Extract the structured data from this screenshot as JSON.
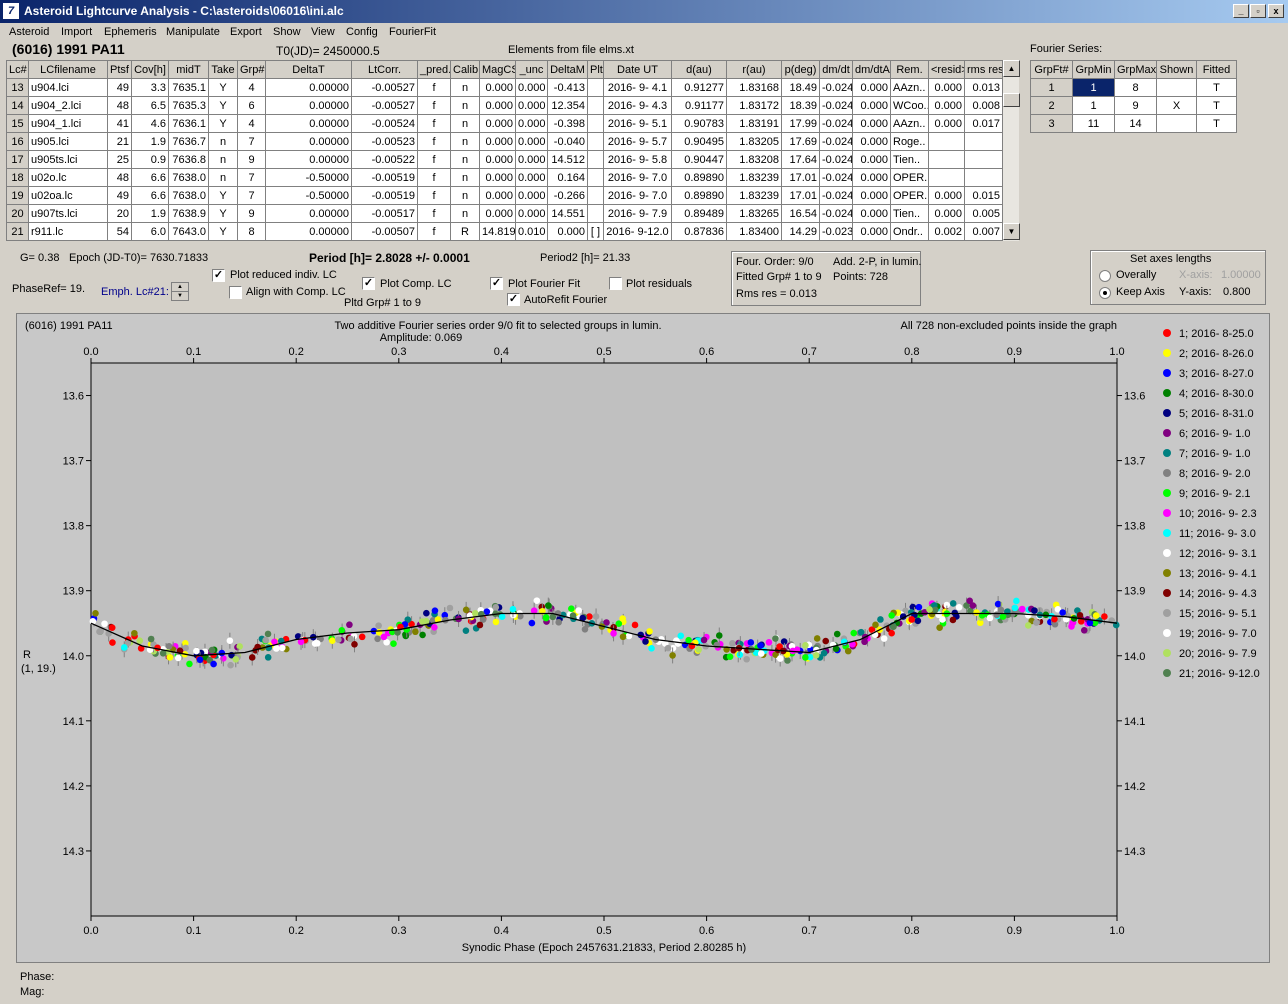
{
  "window": {
    "title": "Asteroid Lightcurve Analysis - C:\\asteroids\\06016\\ini.alc",
    "min": "_",
    "restore": "▫",
    "close": "x",
    "icon": "7"
  },
  "menu": [
    "Asteroid",
    "Import",
    "Ephemeris",
    "Manipulate",
    "Export",
    "Show",
    "View",
    "Config",
    "FourierFit"
  ],
  "header": {
    "asteroid": "(6016) 1991 PA11",
    "t0": "T0(JD)= 2450000.5",
    "elements": "Elements from file elms.xt"
  },
  "lc_table": {
    "columns": [
      "Lc#",
      "LCfilename",
      "Ptsf",
      "Cov[h]",
      "midT",
      "Take",
      "Grp#",
      "DeltaT",
      "LtCorr.",
      "_pred.",
      "Calib.",
      "MagCS",
      "_unc",
      "DeltaM",
      "Plt",
      "Date UT",
      "d(au)",
      "r(au)",
      "p(deg)",
      "dm/dt",
      "dm/dtA",
      "Rem.",
      "<resid>",
      "rms res"
    ],
    "rows": [
      [
        "13",
        "u904.lci",
        "49",
        "3.3",
        "7635.1",
        "Y",
        "4",
        "0.00000",
        "-0.00527",
        "f",
        "n",
        "0.000",
        "0.000",
        "-0.413",
        "",
        "2016- 9- 4.1",
        "0.91277",
        "1.83168",
        "18.49",
        "-0.024",
        "0.000",
        "AAzn..",
        "0.000",
        "0.013"
      ],
      [
        "14",
        "u904_2.lci",
        "48",
        "6.5",
        "7635.3",
        "Y",
        "6",
        "0.00000",
        "-0.00527",
        "f",
        "n",
        "0.000",
        "0.000",
        "12.354",
        "",
        "2016- 9- 4.3",
        "0.91177",
        "1.83172",
        "18.39",
        "-0.024",
        "0.000",
        "WCoo..",
        "0.000",
        "0.008"
      ],
      [
        "15",
        "u904_1.lci",
        "41",
        "4.6",
        "7636.1",
        "Y",
        "4",
        "0.00000",
        "-0.00524",
        "f",
        "n",
        "0.000",
        "0.000",
        "-0.398",
        "",
        "2016- 9- 5.1",
        "0.90783",
        "1.83191",
        "17.99",
        "-0.024",
        "0.000",
        "AAzn..",
        "0.000",
        "0.017"
      ],
      [
        "16",
        "u905.lci",
        "21",
        "1.9",
        "7636.7",
        "n",
        "7",
        "0.00000",
        "-0.00523",
        "f",
        "n",
        "0.000",
        "0.000",
        "-0.040",
        "",
        "2016- 9- 5.7",
        "0.90495",
        "1.83205",
        "17.69",
        "-0.024",
        "0.000",
        "Roge..",
        "",
        ""
      ],
      [
        "17",
        "u905ts.lci",
        "25",
        "0.9",
        "7636.8",
        "n",
        "9",
        "0.00000",
        "-0.00522",
        "f",
        "n",
        "0.000",
        "0.000",
        "14.512",
        "",
        "2016- 9- 5.8",
        "0.90447",
        "1.83208",
        "17.64",
        "-0.024",
        "0.000",
        "Tien..",
        "",
        ""
      ],
      [
        "18",
        "u02o.lc",
        "48",
        "6.6",
        "7638.0",
        "n",
        "7",
        "-0.50000",
        "-0.00519",
        "f",
        "n",
        "0.000",
        "0.000",
        "0.164",
        "",
        "2016- 9- 7.0",
        "0.89890",
        "1.83239",
        "17.01",
        "-0.024",
        "0.000",
        "OPER.",
        "",
        ""
      ],
      [
        "19",
        "u02oa.lc",
        "49",
        "6.6",
        "7638.0",
        "Y",
        "7",
        "-0.50000",
        "-0.00519",
        "f",
        "n",
        "0.000",
        "0.000",
        "-0.266",
        "",
        "2016- 9- 7.0",
        "0.89890",
        "1.83239",
        "17.01",
        "-0.024",
        "0.000",
        "OPER.",
        "0.000",
        "0.015"
      ],
      [
        "20",
        "u907ts.lci",
        "20",
        "1.9",
        "7638.9",
        "Y",
        "9",
        "0.00000",
        "-0.00517",
        "f",
        "n",
        "0.000",
        "0.000",
        "14.551",
        "",
        "2016- 9- 7.9",
        "0.89489",
        "1.83265",
        "16.54",
        "-0.024",
        "0.000",
        "Tien..",
        "0.000",
        "0.005"
      ],
      [
        "21",
        "r911.lc",
        "54",
        "6.0",
        "7643.0",
        "Y",
        "8",
        "0.00000",
        "-0.00507",
        "f",
        "R",
        "14.819",
        "0.010",
        "0.000",
        "[ ]",
        "2016- 9-12.0",
        "0.87836",
        "1.83400",
        "14.29",
        "-0.023",
        "0.000",
        "Ondr..",
        "0.002",
        "0.007"
      ]
    ]
  },
  "fourier_table": {
    "title": "Fourier Series:",
    "columns": [
      "GrpFt#",
      "GrpMin",
      "GrpMax",
      "Shown",
      "Fitted"
    ],
    "rows": [
      [
        "1",
        "1",
        "8",
        "",
        "T"
      ],
      [
        "2",
        "1",
        "9",
        "X",
        "T"
      ],
      [
        "3",
        "11",
        "14",
        "",
        "T"
      ]
    ]
  },
  "controls": {
    "g": "G= 0.38",
    "epoch": "Epoch (JD-T0)= 7630.71833",
    "period": "Period [h]= 2.8028 +/- 0.0001",
    "period2": "Period2 [h]= 21.33",
    "phaseref": "PhaseRef= 19.",
    "emph": "Emph. Lc#21:",
    "plot_reduced": "Plot reduced indiv. LC",
    "align": "Align with Comp. LC",
    "plot_comp": "Plot Comp. LC",
    "pltd_grp": "Pltd Grp#  1   to    9",
    "plot_fourier": "Plot Fourier Fit",
    "autorefit": "AutoRefit Fourier",
    "plot_resid": "Plot residuals",
    "info": {
      "four_order": "Four. Order:  9/0",
      "add": "Add. 2-P, in lumin.",
      "fitted": "Fitted Grp# 1 to 9",
      "points": "Points: 728",
      "rms": "Rms res     = 0.013"
    },
    "axes": {
      "title": "Set axes lengths",
      "overall": "Overally",
      "keep": "Keep Axis",
      "xaxis": "X-axis:",
      "xval": "1.00000",
      "yaxis": "Y-axis:",
      "yval": "0.800"
    }
  },
  "chart_data": {
    "type": "scatter",
    "title": "Two additive Fourier series order 9/0 fit to selected groups in lumin.",
    "subtitle": "Amplitude: 0.069",
    "top_left": "(6016) 1991 PA11",
    "top_right": "All 728 non-excluded points inside the graph",
    "xlabel": "Synodic Phase (Epoch 2457631.21833, Period 2.80285 h)",
    "ylabel": "R",
    "ylabel2": "(1, 19.)",
    "xlim": [
      0.0,
      1.0
    ],
    "ylim": [
      13.55,
      14.4
    ],
    "y_inverted": true,
    "xticks": [
      "0.0",
      "0.1",
      "0.2",
      "0.3",
      "0.4",
      "0.5",
      "0.6",
      "0.7",
      "0.8",
      "0.9",
      "1.0"
    ],
    "yticks": [
      "13.6",
      "13.7",
      "13.8",
      "13.9",
      "14.0",
      "14.1",
      "14.2",
      "14.3"
    ],
    "fit_curve": {
      "x": [
        0.0,
        0.05,
        0.1,
        0.15,
        0.2,
        0.25,
        0.3,
        0.35,
        0.4,
        0.45,
        0.5,
        0.55,
        0.6,
        0.65,
        0.7,
        0.75,
        0.8,
        0.85,
        0.9,
        0.95,
        1.0
      ],
      "y": [
        13.95,
        13.985,
        14.0,
        13.995,
        13.975,
        13.965,
        13.96,
        13.945,
        13.935,
        13.935,
        13.955,
        13.975,
        13.985,
        13.99,
        13.995,
        13.975,
        13.935,
        13.935,
        13.935,
        13.94,
        13.95
      ]
    },
    "legend": [
      {
        "label": "1; 2016- 8-25.0",
        "color": "#ff0000"
      },
      {
        "label": "2; 2016- 8-26.0",
        "color": "#ffff00"
      },
      {
        "label": "3; 2016- 8-27.0",
        "color": "#0000ff"
      },
      {
        "label": "4; 2016- 8-30.0",
        "color": "#008000"
      },
      {
        "label": "5; 2016- 8-31.0",
        "color": "#000080"
      },
      {
        "label": "6; 2016- 9- 1.0",
        "color": "#800080"
      },
      {
        "label": "7; 2016- 9- 1.0",
        "color": "#008080"
      },
      {
        "label": "8; 2016- 9- 2.0",
        "color": "#808080"
      },
      {
        "label": "9; 2016- 9- 2.1",
        "color": "#00ff00"
      },
      {
        "label": "10; 2016- 9- 2.3",
        "color": "#ff00ff"
      },
      {
        "label": "11; 2016- 9- 3.0",
        "color": "#00ffff"
      },
      {
        "label": "12; 2016- 9- 3.1",
        "color": "#ffffff"
      },
      {
        "label": "13; 2016- 9- 4.1",
        "color": "#808000"
      },
      {
        "label": "14; 2016- 9- 4.3",
        "color": "#800000"
      },
      {
        "label": "15; 2016- 9- 5.1",
        "color": "#a0a0a0"
      },
      {
        "label": "19; 2016- 9- 7.0",
        "color": "#ffffff"
      },
      {
        "label": "20; 2016- 9- 7.9",
        "color": "#b0e060"
      },
      {
        "label": "21; 2016- 9-12.0",
        "color": "#508050"
      }
    ]
  },
  "status": {
    "phase": "Phase:",
    "mag": "Mag:"
  }
}
